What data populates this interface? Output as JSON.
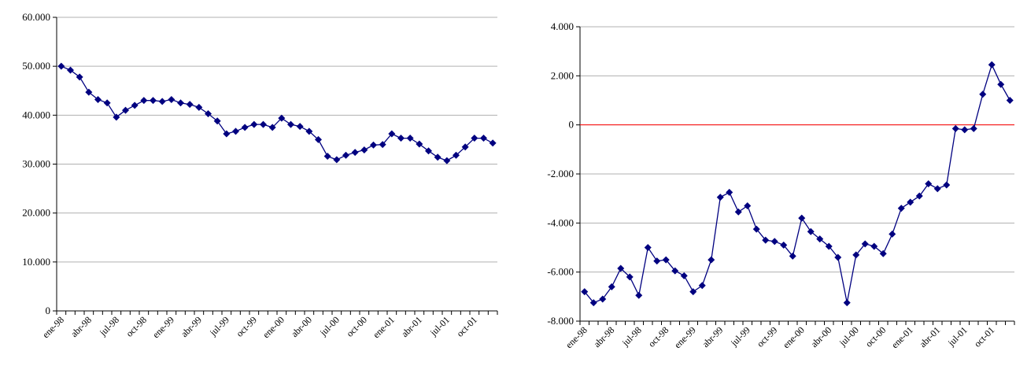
{
  "chart_data": [
    {
      "type": "line",
      "title": "",
      "xlabel": "",
      "ylabel": "",
      "ylim": [
        0,
        60000
      ],
      "y_ticks": [
        0,
        10000,
        20000,
        30000,
        40000,
        50000,
        60000
      ],
      "y_tick_labels": [
        "0",
        "10.000",
        "20.000",
        "30.000",
        "40.000",
        "50.000",
        "60.000"
      ],
      "x_tick_labels": [
        "ene-98",
        "abr-98",
        "jul-98",
        "oct-98",
        "ene-99",
        "abr-99",
        "jul-99",
        "oct-99",
        "ene-00",
        "abr-00",
        "jul-00",
        "oct-00",
        "ene-01",
        "abr-01",
        "jul-01",
        "oct-01"
      ],
      "x_tick_every": 3,
      "grid": true,
      "series_color": "#000080",
      "series": [
        {
          "values": [
            50000,
            49200,
            47800,
            44700,
            43200,
            42500,
            39600,
            41000,
            42000,
            43000,
            43000,
            42800,
            43200,
            42500,
            42200,
            41600,
            40300,
            38800,
            36200,
            36700,
            37500,
            38100,
            38100,
            37500,
            39400,
            38100,
            37700,
            36700,
            35000,
            31600,
            30900,
            31800,
            32400,
            32900,
            33900,
            34000,
            36200,
            35300,
            35300,
            34100,
            32700,
            31400,
            30700,
            31800,
            33500,
            35300,
            35300,
            34300
          ]
        }
      ]
    },
    {
      "type": "line",
      "title": "",
      "xlabel": "",
      "ylabel": "",
      "ylim": [
        -8000,
        4000
      ],
      "y_ticks": [
        -8000,
        -6000,
        -4000,
        -2000,
        0,
        2000,
        4000
      ],
      "y_tick_labels": [
        "-8.000",
        "-6.000",
        "-4.000",
        "-2.000",
        "0",
        "2.000",
        "4.000"
      ],
      "x_tick_labels": [
        "ene-98",
        "abr-98",
        "jul-98",
        "oct-98",
        "ene-99",
        "abr-99",
        "jul-99",
        "oct-99",
        "ene-00",
        "abr-00",
        "jul-00",
        "oct-00",
        "ene-01",
        "abr-01",
        "jul-01",
        "oct-01"
      ],
      "x_tick_every": 3,
      "grid": true,
      "zero_line_color": "#ff0000",
      "series_color": "#000080",
      "series": [
        {
          "values": [
            -6800,
            -7250,
            -7100,
            -6600,
            -5850,
            -6200,
            -6950,
            -5000,
            -5550,
            -5500,
            -5950,
            -6150,
            -6800,
            -6550,
            -5500,
            -2950,
            -2750,
            -3550,
            -3300,
            -4250,
            -4700,
            -4750,
            -4900,
            -5350,
            -3800,
            -4350,
            -4650,
            -4950,
            -5400,
            -7250,
            -5300,
            -4850,
            -4950,
            -5250,
            -4450,
            -3400,
            -3150,
            -2900,
            -2400,
            -2600,
            -2450,
            -150,
            -200,
            -150,
            1250,
            2450,
            1650,
            1000
          ]
        }
      ]
    }
  ]
}
